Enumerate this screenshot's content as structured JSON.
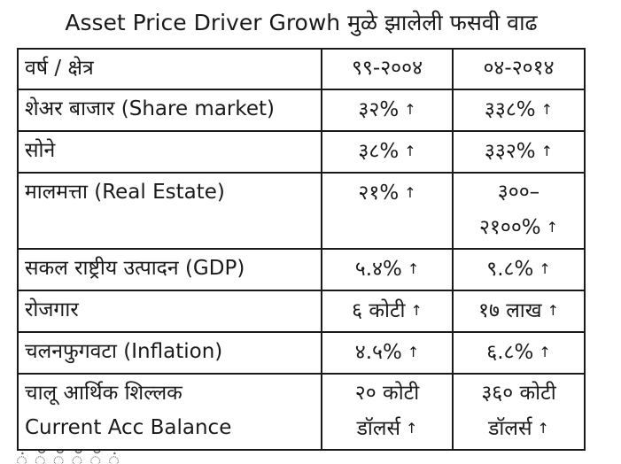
{
  "title": "Asset Price Driver Growh मुळे झालेली फसवी वाढ",
  "arrow_glyph": "↑",
  "table": {
    "header": {
      "label": "वर्ष / क्षेत्र",
      "period1": "९९-२००४",
      "period2": "०४-२०१४"
    },
    "rows": [
      {
        "label": "शेअर बाजार (Share market)",
        "v1": "३२%",
        "v2": "३३८%"
      },
      {
        "label": "सोने",
        "v1": "३८%",
        "v2": "३३२%"
      },
      {
        "label": "मालमत्ता (Real Estate)",
        "v1": "२१%",
        "v2_line1": "३००–",
        "v2_line2": "२१००%"
      },
      {
        "label": "सकल राष्ट्रीय उत्पादन (GDP)",
        "v1": "५.४%",
        "v2": "९.८%"
      },
      {
        "label": "रोजगार",
        "v1": "६ कोटी",
        "v2": "१७ लाख"
      },
      {
        "label": "चलनफुगवटा (Inflation)",
        "v1": "४.५%",
        "v2": "६.८%"
      },
      {
        "label_line1": "चालू आर्थिक शिल्लक",
        "label_line2": "Current  Acc Balance",
        "v1_line1": "२० कोटी",
        "v1_line2": "डॉलर्स",
        "v2_line1": "३६० कोटी",
        "v2_line2": "डॉलर्स"
      }
    ]
  },
  "footer_fragment": "ं ँ ँ ँ ँ ं"
}
